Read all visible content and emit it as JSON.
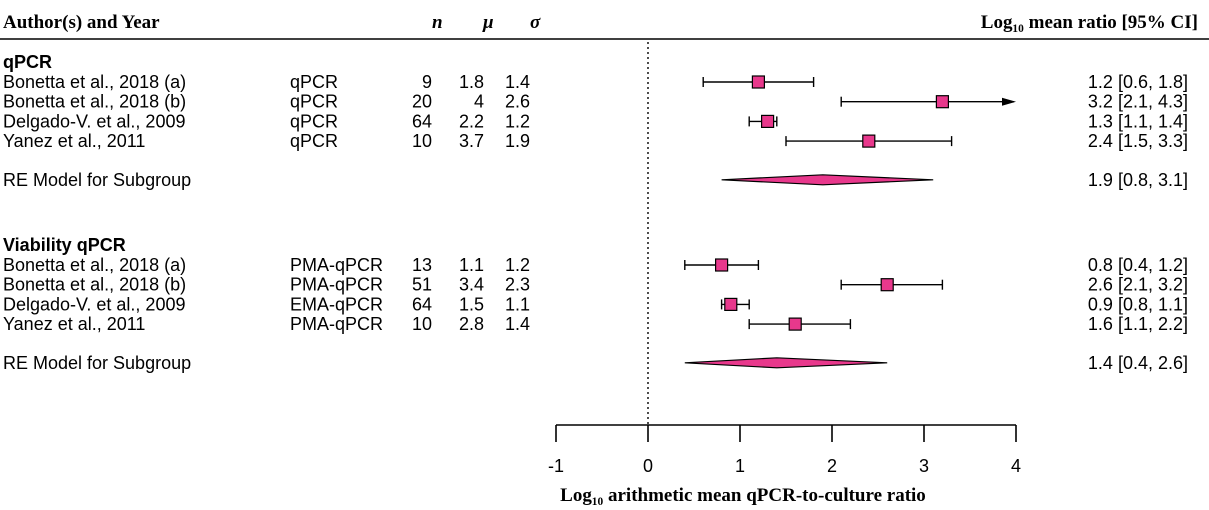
{
  "header": {
    "author_year": "Author(s) and Year",
    "n": "n",
    "mu": "μ",
    "sigma": "σ",
    "ci_label": "Log₁₀ mean ratio [95% CI]"
  },
  "chart_data": {
    "type": "forest",
    "xlabel": "Log₁₀ arithmetic mean qPCR-to-culture ratio",
    "xlim": [
      -1,
      4
    ],
    "xticks": [
      "-1",
      "0",
      "1",
      "2",
      "3",
      "4"
    ],
    "reference_line": 0,
    "colors": {
      "marker": "#e8388c",
      "diamond": "#e8388c",
      "line": "#000000"
    },
    "groups": [
      {
        "title": "qPCR",
        "studies": [
          {
            "author": "Bonetta et al., 2018 (a)",
            "method": "qPCR",
            "n": "9",
            "mu": "1.8",
            "sigma": "1.4",
            "est": 1.2,
            "lo": 0.6,
            "hi": 1.8,
            "ci_text": "1.2 [0.6, 1.8]",
            "arrow": false
          },
          {
            "author": "Bonetta et al., 2018 (b)",
            "method": "qPCR",
            "n": "20",
            "mu": "4",
            "sigma": "2.6",
            "est": 3.2,
            "lo": 2.1,
            "hi": 4.3,
            "ci_text": "3.2 [2.1, 4.3]",
            "arrow": true
          },
          {
            "author": "Delgado-V. et al., 2009",
            "method": "qPCR",
            "n": "64",
            "mu": "2.2",
            "sigma": "1.2",
            "est": 1.3,
            "lo": 1.1,
            "hi": 1.4,
            "ci_text": "1.3 [1.1, 1.4]",
            "arrow": false
          },
          {
            "author": "Yanez et al., 2011",
            "method": "qPCR",
            "n": "10",
            "mu": "3.7",
            "sigma": "1.9",
            "est": 2.4,
            "lo": 1.5,
            "hi": 3.3,
            "ci_text": "2.4 [1.5, 3.3]",
            "arrow": false
          }
        ],
        "summary": {
          "label": "RE Model for Subgroup",
          "est": 1.9,
          "lo": 0.8,
          "hi": 3.1,
          "ci_text": "1.9 [0.8, 3.1]"
        }
      },
      {
        "title": "Viability qPCR",
        "studies": [
          {
            "author": "Bonetta et al., 2018 (a)",
            "method": "PMA-qPCR",
            "n": "13",
            "mu": "1.1",
            "sigma": "1.2",
            "est": 0.8,
            "lo": 0.4,
            "hi": 1.2,
            "ci_text": "0.8 [0.4, 1.2]",
            "arrow": false
          },
          {
            "author": "Bonetta et al., 2018 (b)",
            "method": "PMA-qPCR",
            "n": "51",
            "mu": "3.4",
            "sigma": "2.3",
            "est": 2.6,
            "lo": 2.1,
            "hi": 3.2,
            "ci_text": "2.6 [2.1, 3.2]",
            "arrow": false
          },
          {
            "author": "Delgado-V. et al., 2009",
            "method": "EMA-qPCR",
            "n": "64",
            "mu": "1.5",
            "sigma": "1.1",
            "est": 0.9,
            "lo": 0.8,
            "hi": 1.1,
            "ci_text": "0.9 [0.8, 1.1]",
            "arrow": false
          },
          {
            "author": "Yanez et al., 2011",
            "method": "PMA-qPCR",
            "n": "10",
            "mu": "2.8",
            "sigma": "1.4",
            "est": 1.6,
            "lo": 1.1,
            "hi": 2.2,
            "ci_text": "1.6 [1.1, 2.2]",
            "arrow": false
          }
        ],
        "summary": {
          "label": "RE Model for Subgroup",
          "est": 1.4,
          "lo": 0.4,
          "hi": 2.6,
          "ci_text": "1.4 [0.4, 2.6]"
        }
      }
    ]
  }
}
